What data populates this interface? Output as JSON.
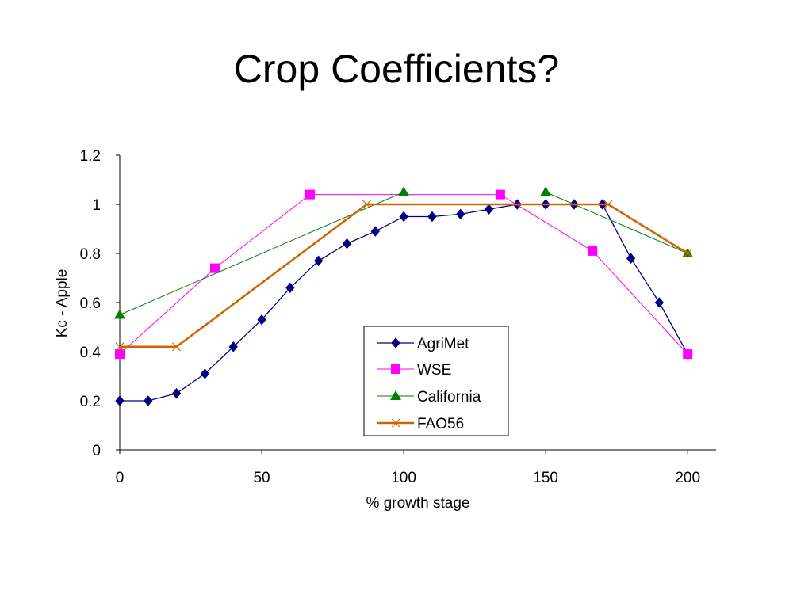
{
  "slide": {
    "title": "Crop Coefficients?"
  },
  "chart_data": {
    "type": "line",
    "title": "",
    "xlabel": "% growth stage",
    "ylabel": "Kc - Apple",
    "xlim": [
      0,
      210
    ],
    "ylim": [
      0,
      1.2
    ],
    "x_ticks": [
      0,
      50,
      100,
      150,
      200
    ],
    "y_ticks": [
      0,
      0.2,
      0.4,
      0.6,
      0.8,
      1,
      1.2
    ],
    "grid": false,
    "legend_position": "inside-bottom-center",
    "series": [
      {
        "name": "AgriMet",
        "color": "#000080",
        "marker": "diamond",
        "points": [
          [
            0,
            0.2
          ],
          [
            10,
            0.2
          ],
          [
            20,
            0.23
          ],
          [
            30,
            0.31
          ],
          [
            40,
            0.42
          ],
          [
            50,
            0.53
          ],
          [
            60,
            0.66
          ],
          [
            70,
            0.77
          ],
          [
            80,
            0.84
          ],
          [
            90,
            0.89
          ],
          [
            100,
            0.95
          ],
          [
            110,
            0.95
          ],
          [
            120,
            0.96
          ],
          [
            130,
            0.98
          ],
          [
            140,
            1.0
          ],
          [
            150,
            1.0
          ],
          [
            160,
            1.0
          ],
          [
            170,
            1.0
          ],
          [
            180,
            0.78
          ],
          [
            190,
            0.6
          ],
          [
            200,
            0.39
          ]
        ]
      },
      {
        "name": "WSE",
        "color": "#FF00FF",
        "marker": "square",
        "points": [
          [
            0,
            0.39
          ],
          [
            33.5,
            0.74
          ],
          [
            67,
            1.04
          ],
          [
            134,
            1.04
          ],
          [
            166.5,
            0.81
          ],
          [
            200,
            0.39
          ]
        ]
      },
      {
        "name": "California",
        "color": "#008000",
        "marker": "triangle",
        "points": [
          [
            0,
            0.55
          ],
          [
            100,
            1.05
          ],
          [
            150,
            1.05
          ],
          [
            200,
            0.8
          ]
        ]
      },
      {
        "name": "FAO56",
        "color": "#CC6600",
        "marker": "x",
        "points": [
          [
            0,
            0.42
          ],
          [
            20,
            0.42
          ],
          [
            87,
            1.0
          ],
          [
            172,
            1.0
          ],
          [
            200,
            0.8
          ]
        ]
      }
    ]
  }
}
